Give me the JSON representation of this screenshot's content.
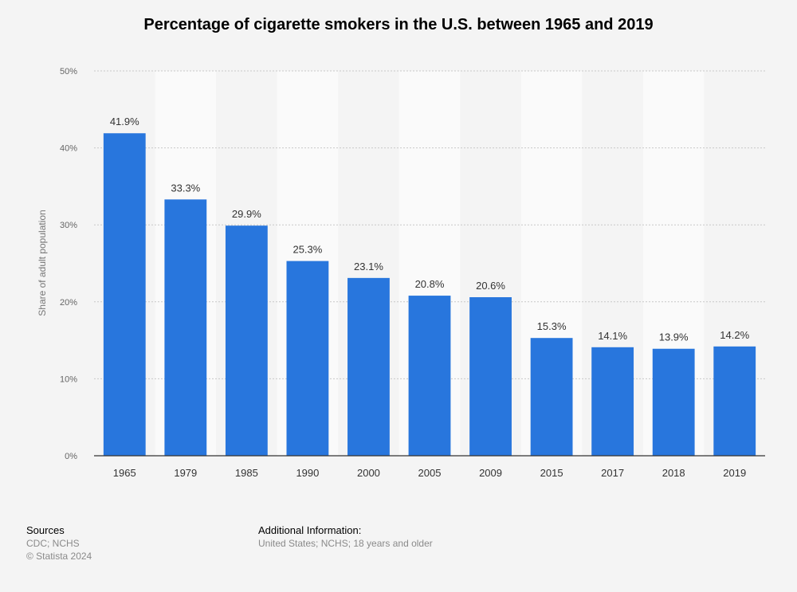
{
  "chart_data": {
    "type": "bar",
    "title": "Percentage of cigarette smokers in the U.S. between 1965 and 2019",
    "ylabel": "Share of adult population",
    "xlabel": "",
    "categories": [
      "1965",
      "1979",
      "1985",
      "1990",
      "2000",
      "2005",
      "2009",
      "2015",
      "2017",
      "2018",
      "2019"
    ],
    "values": [
      41.9,
      33.3,
      29.9,
      25.3,
      23.1,
      20.8,
      20.6,
      15.3,
      14.1,
      13.9,
      14.2
    ],
    "value_labels": [
      "41.9%",
      "33.3%",
      "29.9%",
      "25.3%",
      "23.1%",
      "20.8%",
      "20.6%",
      "15.3%",
      "14.1%",
      "13.9%",
      "14.2%"
    ],
    "ylim": [
      0,
      50
    ],
    "yticks": [
      "0%",
      "10%",
      "20%",
      "30%",
      "40%",
      "50%"
    ],
    "grid": true,
    "bar_color": "#2876dd"
  },
  "footer": {
    "sources_heading": "Sources",
    "sources_line1": "CDC; NCHS",
    "sources_line2": "© Statista 2024",
    "info_heading": "Additional Information:",
    "info_line1": "United States; NCHS; 18 years and older"
  }
}
